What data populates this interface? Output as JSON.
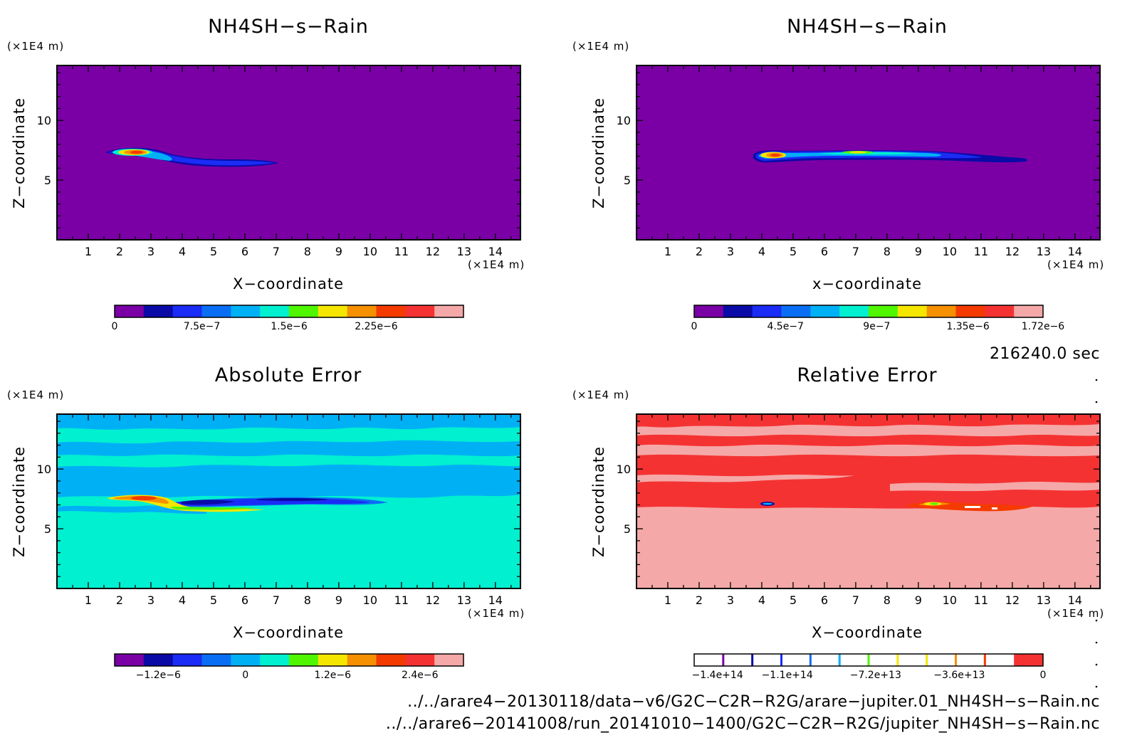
{
  "colors": {
    "jet": [
      "#7a00a6",
      "#0a0aa6",
      "#1a2cf5",
      "#0a6ef5",
      "#00b0f5",
      "#00f0d0",
      "#50f500",
      "#f5e600",
      "#f59000",
      "#f53a00",
      "#f53232",
      "#f5a8a8"
    ],
    "background": "#7a00a6"
  },
  "chart_data": [
    {
      "type": "heatmap",
      "title": "NH4SH−s−Rain",
      "xlabel": "X−coordinate",
      "ylabel": "Z−coordinate",
      "x_unit": "(×1E4 m)",
      "z_unit": "(×1E4 m)",
      "xlim": [
        0,
        14.8
      ],
      "zlim": [
        0,
        14.6
      ],
      "x_ticks": [
        "1",
        "2",
        "3",
        "4",
        "5",
        "6",
        "7",
        "8",
        "9",
        "10",
        "11",
        "12",
        "13",
        "14"
      ],
      "z_ticks": [
        "5",
        "10"
      ],
      "colorbar": {
        "labels": [
          "0",
          "7.5e−7",
          "1.5e−6",
          "2.25e−6"
        ],
        "min": 0,
        "max": 3e-06,
        "levels": 11
      }
    },
    {
      "type": "heatmap",
      "title": "NH4SH−s−Rain",
      "xlabel": "x−coordinate",
      "ylabel": "Z−coordinate",
      "x_unit": "(×1E4 m)",
      "z_unit": "(×1E4 m)",
      "xlim": [
        0,
        14.8
      ],
      "zlim": [
        0,
        14.6
      ],
      "x_ticks": [
        "1",
        "2",
        "3",
        "4",
        "5",
        "6",
        "7",
        "8",
        "9",
        "10",
        "11",
        "12",
        "13",
        "14"
      ],
      "z_ticks": [
        "5",
        "10"
      ],
      "colorbar": {
        "labels": [
          "0",
          "4.5e−7",
          "9e−7",
          "1.35e−6",
          "1.72e−6"
        ],
        "min": 0,
        "max": 1.72e-06,
        "levels": 11
      }
    },
    {
      "type": "heatmap",
      "title": "Absolute Error",
      "xlabel": "X−coordinate",
      "ylabel": "Z−coordinate",
      "x_unit": "(×1E4 m)",
      "z_unit": "(×1E4 m)",
      "xlim": [
        0,
        14.8
      ],
      "zlim": [
        0,
        14.6
      ],
      "x_ticks": [
        "1",
        "2",
        "3",
        "4",
        "5",
        "6",
        "7",
        "8",
        "9",
        "10",
        "11",
        "12",
        "13",
        "14"
      ],
      "z_ticks": [
        "5",
        "10"
      ],
      "colorbar": {
        "labels": [
          "−1.2e−6",
          "0",
          "1.2e−6",
          "2.4e−6"
        ],
        "min": -1.8e-06,
        "max": 3e-06,
        "levels": 11
      }
    },
    {
      "type": "heatmap",
      "title": "Relative Error",
      "xlabel": "X−coordinate",
      "ylabel": "Z−coordinate",
      "x_unit": "(×1E4 m)",
      "z_unit": "(×1E4 m)",
      "xlim": [
        0,
        14.8
      ],
      "zlim": [
        0,
        14.6
      ],
      "x_ticks": [
        "1",
        "2",
        "3",
        "4",
        "5",
        "6",
        "7",
        "8",
        "9",
        "10",
        "11",
        "12",
        "13",
        "14"
      ],
      "z_ticks": [
        "5",
        "10"
      ],
      "colorbar": {
        "labels": [
          "−1.4e+14",
          "−1.1e+14",
          "−7.2e+13",
          "−3.6e+13",
          "0"
        ],
        "min": -150000000000000.0,
        "max": 0,
        "levels": 11
      }
    }
  ],
  "time_label": "216240.0 sec",
  "file_paths": [
    "../../arare4−20130118/data−v6/G2C−C2R−R2G/arare−jupiter.01_NH4SH−s−Rain.nc",
    "../../arare6−20141008/run_20141010−1400/G2C−C2R−R2G/jupiter_NH4SH−s−Rain.nc"
  ]
}
